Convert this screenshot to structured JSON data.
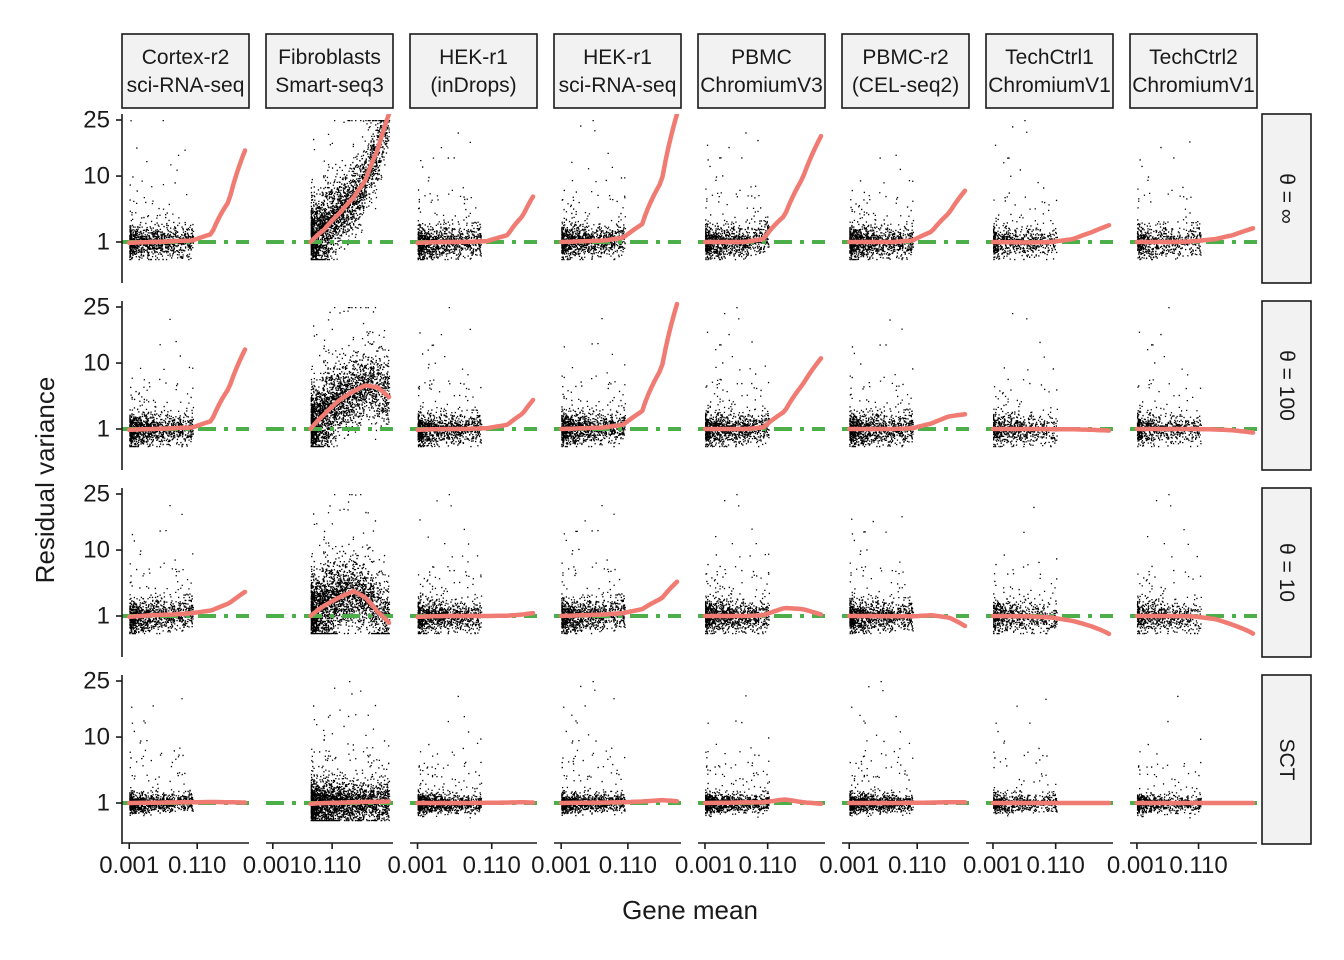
{
  "chart_data": {
    "type": "scatter",
    "title": "",
    "xlabel": "Gene mean",
    "ylabel": "Residual variance",
    "x_scale": "log",
    "y_scale": "sqrt",
    "x_ticks": [
      0.001,
      0.11
    ],
    "x_tick_labels": [
      "0.001",
      "0.110"
    ],
    "xlim": [
      0.0008,
      10
    ],
    "y_ticks": [
      1,
      10,
      25
    ],
    "y_tick_labels": [
      "1",
      "10",
      "25"
    ],
    "ylim": [
      0.1,
      27
    ],
    "reference_line": {
      "y": 1,
      "color": "#4daf4a"
    },
    "colors": {
      "points": "#000000",
      "fit": "#f07b72",
      "reference": "#4daf4a",
      "strip": "#f2f2f2"
    },
    "columns": [
      {
        "line1": "Cortex-r2",
        "line2": "sci-RNA-seq",
        "xmax": 3.0
      },
      {
        "line1": "Fibroblasts",
        "line2": "Smart-seq3",
        "xmax": 10.0
      },
      {
        "line1": "HEK-r1",
        "line2": "(inDrops)",
        "xmax": 1.5
      },
      {
        "line1": "HEK-r1",
        "line2": "sci-RNA-seq",
        "xmax": 3.5
      },
      {
        "line1": "PBMC",
        "line2": "ChromiumV3",
        "xmax": 6.0
      },
      {
        "line1": "PBMC-r2",
        "line2": "(CEL-seq2)",
        "xmax": 3.0
      },
      {
        "line1": "TechCtrl1",
        "line2": "ChromiumV1",
        "xmax": 6.0
      },
      {
        "line1": "TechCtrl2",
        "line2": "ChromiumV1",
        "xmax": 7.0
      }
    ],
    "rows": [
      {
        "label": "θ = ∞",
        "key": "inf"
      },
      {
        "label": "θ = 100",
        "key": "100"
      },
      {
        "label": "θ = 10",
        "key": "10"
      },
      {
        "label": "SCT",
        "key": "sct"
      }
    ],
    "fit_curves": [
      [
        {
          "x": [
            0.001,
            0.005,
            0.02,
            0.08,
            0.3,
            1.0,
            3.0
          ],
          "y": [
            0.95,
            1.0,
            1.05,
            1.1,
            1.6,
            5.5,
            16.0
          ]
        },
        {
          "x": [
            0.02,
            0.06,
            0.2,
            0.6,
            1.5,
            4.0,
            10.0
          ],
          "y": [
            1.0,
            2.0,
            3.8,
            6.0,
            9.0,
            16.0,
            27.0
          ]
        },
        {
          "x": [
            0.001,
            0.005,
            0.02,
            0.08,
            0.3,
            0.8,
            1.5
          ],
          "y": [
            0.95,
            1.0,
            1.0,
            1.05,
            1.5,
            3.5,
            6.2
          ]
        },
        {
          "x": [
            0.001,
            0.005,
            0.02,
            0.08,
            0.3,
            1.2,
            3.5
          ],
          "y": [
            1.0,
            1.05,
            1.1,
            1.3,
            2.5,
            9.0,
            27.0
          ]
        },
        {
          "x": [
            0.001,
            0.005,
            0.02,
            0.08,
            0.4,
            1.5,
            6.0
          ],
          "y": [
            1.0,
            1.0,
            1.0,
            1.2,
            3.5,
            9.5,
            20.0
          ]
        },
        {
          "x": [
            0.001,
            0.005,
            0.02,
            0.08,
            0.3,
            1.0,
            3.0
          ],
          "y": [
            1.0,
            1.0,
            1.0,
            1.1,
            1.8,
            3.8,
            7.2
          ]
        },
        {
          "x": [
            0.001,
            0.005,
            0.02,
            0.08,
            0.4,
            1.5,
            6.0
          ],
          "y": [
            1.0,
            0.98,
            0.97,
            1.0,
            1.2,
            1.7,
            2.4
          ]
        },
        {
          "x": [
            0.001,
            0.005,
            0.02,
            0.08,
            0.4,
            1.5,
            7.0
          ],
          "y": [
            1.0,
            1.0,
            1.0,
            1.05,
            1.2,
            1.5,
            2.1
          ]
        }
      ],
      [
        {
          "x": [
            0.001,
            0.005,
            0.02,
            0.08,
            0.3,
            1.0,
            3.0
          ],
          "y": [
            0.95,
            1.0,
            1.05,
            1.1,
            1.6,
            5.5,
            13.0
          ]
        },
        {
          "x": [
            0.02,
            0.06,
            0.2,
            0.6,
            1.5,
            4.0,
            10.0
          ],
          "y": [
            1.0,
            2.2,
            3.8,
            5.0,
            5.9,
            5.6,
            4.2
          ]
        },
        {
          "x": [
            0.001,
            0.005,
            0.02,
            0.08,
            0.3,
            0.8,
            1.5
          ],
          "y": [
            0.95,
            1.0,
            1.0,
            1.05,
            1.3,
            2.3,
            3.8
          ]
        },
        {
          "x": [
            0.001,
            0.005,
            0.02,
            0.08,
            0.3,
            1.2,
            3.5
          ],
          "y": [
            1.0,
            1.05,
            1.1,
            1.3,
            2.5,
            9.0,
            26.0
          ]
        },
        {
          "x": [
            0.001,
            0.005,
            0.02,
            0.08,
            0.4,
            1.5,
            6.0
          ],
          "y": [
            1.0,
            1.0,
            1.0,
            1.1,
            2.5,
            6.0,
            11.0
          ]
        },
        {
          "x": [
            0.001,
            0.005,
            0.02,
            0.08,
            0.3,
            1.0,
            3.0
          ],
          "y": [
            1.0,
            1.0,
            1.0,
            1.05,
            1.4,
            2.0,
            2.2
          ]
        },
        {
          "x": [
            0.001,
            0.005,
            0.02,
            0.08,
            0.4,
            1.5,
            6.0
          ],
          "y": [
            1.0,
            1.0,
            1.0,
            0.99,
            0.98,
            0.95,
            0.9
          ]
        },
        {
          "x": [
            0.001,
            0.005,
            0.02,
            0.08,
            0.4,
            1.5,
            7.0
          ],
          "y": [
            1.0,
            1.0,
            1.0,
            1.0,
            0.97,
            0.92,
            0.78
          ]
        }
      ],
      [
        {
          "x": [
            0.001,
            0.005,
            0.02,
            0.08,
            0.3,
            1.0,
            3.0
          ],
          "y": [
            0.95,
            1.05,
            1.1,
            1.2,
            1.4,
            2.0,
            3.2
          ]
        },
        {
          "x": [
            0.02,
            0.06,
            0.2,
            0.6,
            1.5,
            4.0,
            10.0
          ],
          "y": [
            1.0,
            1.8,
            2.6,
            3.3,
            2.6,
            1.3,
            0.6
          ]
        },
        {
          "x": [
            0.001,
            0.005,
            0.02,
            0.08,
            0.3,
            0.8,
            1.5
          ],
          "y": [
            0.95,
            1.0,
            1.0,
            1.0,
            1.02,
            1.1,
            1.2
          ]
        },
        {
          "x": [
            0.001,
            0.005,
            0.02,
            0.08,
            0.3,
            1.2,
            3.5
          ],
          "y": [
            1.0,
            1.05,
            1.1,
            1.2,
            1.5,
            2.5,
            4.5
          ]
        },
        {
          "x": [
            0.001,
            0.005,
            0.02,
            0.08,
            0.4,
            1.5,
            6.0
          ],
          "y": [
            1.0,
            1.0,
            1.0,
            1.05,
            1.6,
            1.5,
            1.1
          ]
        },
        {
          "x": [
            0.001,
            0.005,
            0.02,
            0.08,
            0.3,
            1.0,
            3.0
          ],
          "y": [
            1.0,
            1.0,
            0.98,
            0.98,
            1.05,
            0.9,
            0.45
          ]
        },
        {
          "x": [
            0.001,
            0.005,
            0.02,
            0.08,
            0.4,
            1.5,
            6.0
          ],
          "y": [
            1.0,
            0.99,
            0.97,
            0.9,
            0.7,
            0.45,
            0.17
          ]
        },
        {
          "x": [
            0.001,
            0.005,
            0.02,
            0.08,
            0.4,
            1.5,
            7.0
          ],
          "y": [
            1.0,
            1.0,
            1.0,
            0.97,
            0.8,
            0.5,
            0.18
          ]
        }
      ],
      [
        {
          "x": [
            0.001,
            0.005,
            0.02,
            0.08,
            0.3,
            1.0,
            3.0
          ],
          "y": [
            1.0,
            1.02,
            1.04,
            1.05,
            1.07,
            1.05,
            1.03
          ]
        },
        {
          "x": [
            0.02,
            0.06,
            0.2,
            0.6,
            1.5,
            4.0,
            10.0
          ],
          "y": [
            0.95,
            1.0,
            1.02,
            1.05,
            1.07,
            1.08,
            1.1
          ]
        },
        {
          "x": [
            0.001,
            0.005,
            0.02,
            0.08,
            0.3,
            0.8,
            1.5
          ],
          "y": [
            1.0,
            1.0,
            1.0,
            1.01,
            1.03,
            1.05,
            1.03
          ]
        },
        {
          "x": [
            0.001,
            0.005,
            0.02,
            0.08,
            0.3,
            1.2,
            3.5
          ],
          "y": [
            1.0,
            1.02,
            1.03,
            1.05,
            1.1,
            1.2,
            1.12
          ]
        },
        {
          "x": [
            0.001,
            0.005,
            0.02,
            0.08,
            0.4,
            1.5,
            6.0
          ],
          "y": [
            1.0,
            1.02,
            1.04,
            1.04,
            1.25,
            1.05,
            0.95
          ]
        },
        {
          "x": [
            0.001,
            0.005,
            0.02,
            0.08,
            0.3,
            1.0,
            3.0
          ],
          "y": [
            1.0,
            1.0,
            1.0,
            1.01,
            1.03,
            1.05,
            1.05
          ]
        },
        {
          "x": [
            0.001,
            0.005,
            0.02,
            0.08,
            0.4,
            1.5,
            6.0
          ],
          "y": [
            1.0,
            1.0,
            1.0,
            1.0,
            1.0,
            1.0,
            1.0
          ]
        },
        {
          "x": [
            0.001,
            0.005,
            0.02,
            0.08,
            0.4,
            1.5,
            7.0
          ],
          "y": [
            1.0,
            1.0,
            1.0,
            1.0,
            1.0,
            1.0,
            1.0
          ]
        }
      ]
    ]
  }
}
